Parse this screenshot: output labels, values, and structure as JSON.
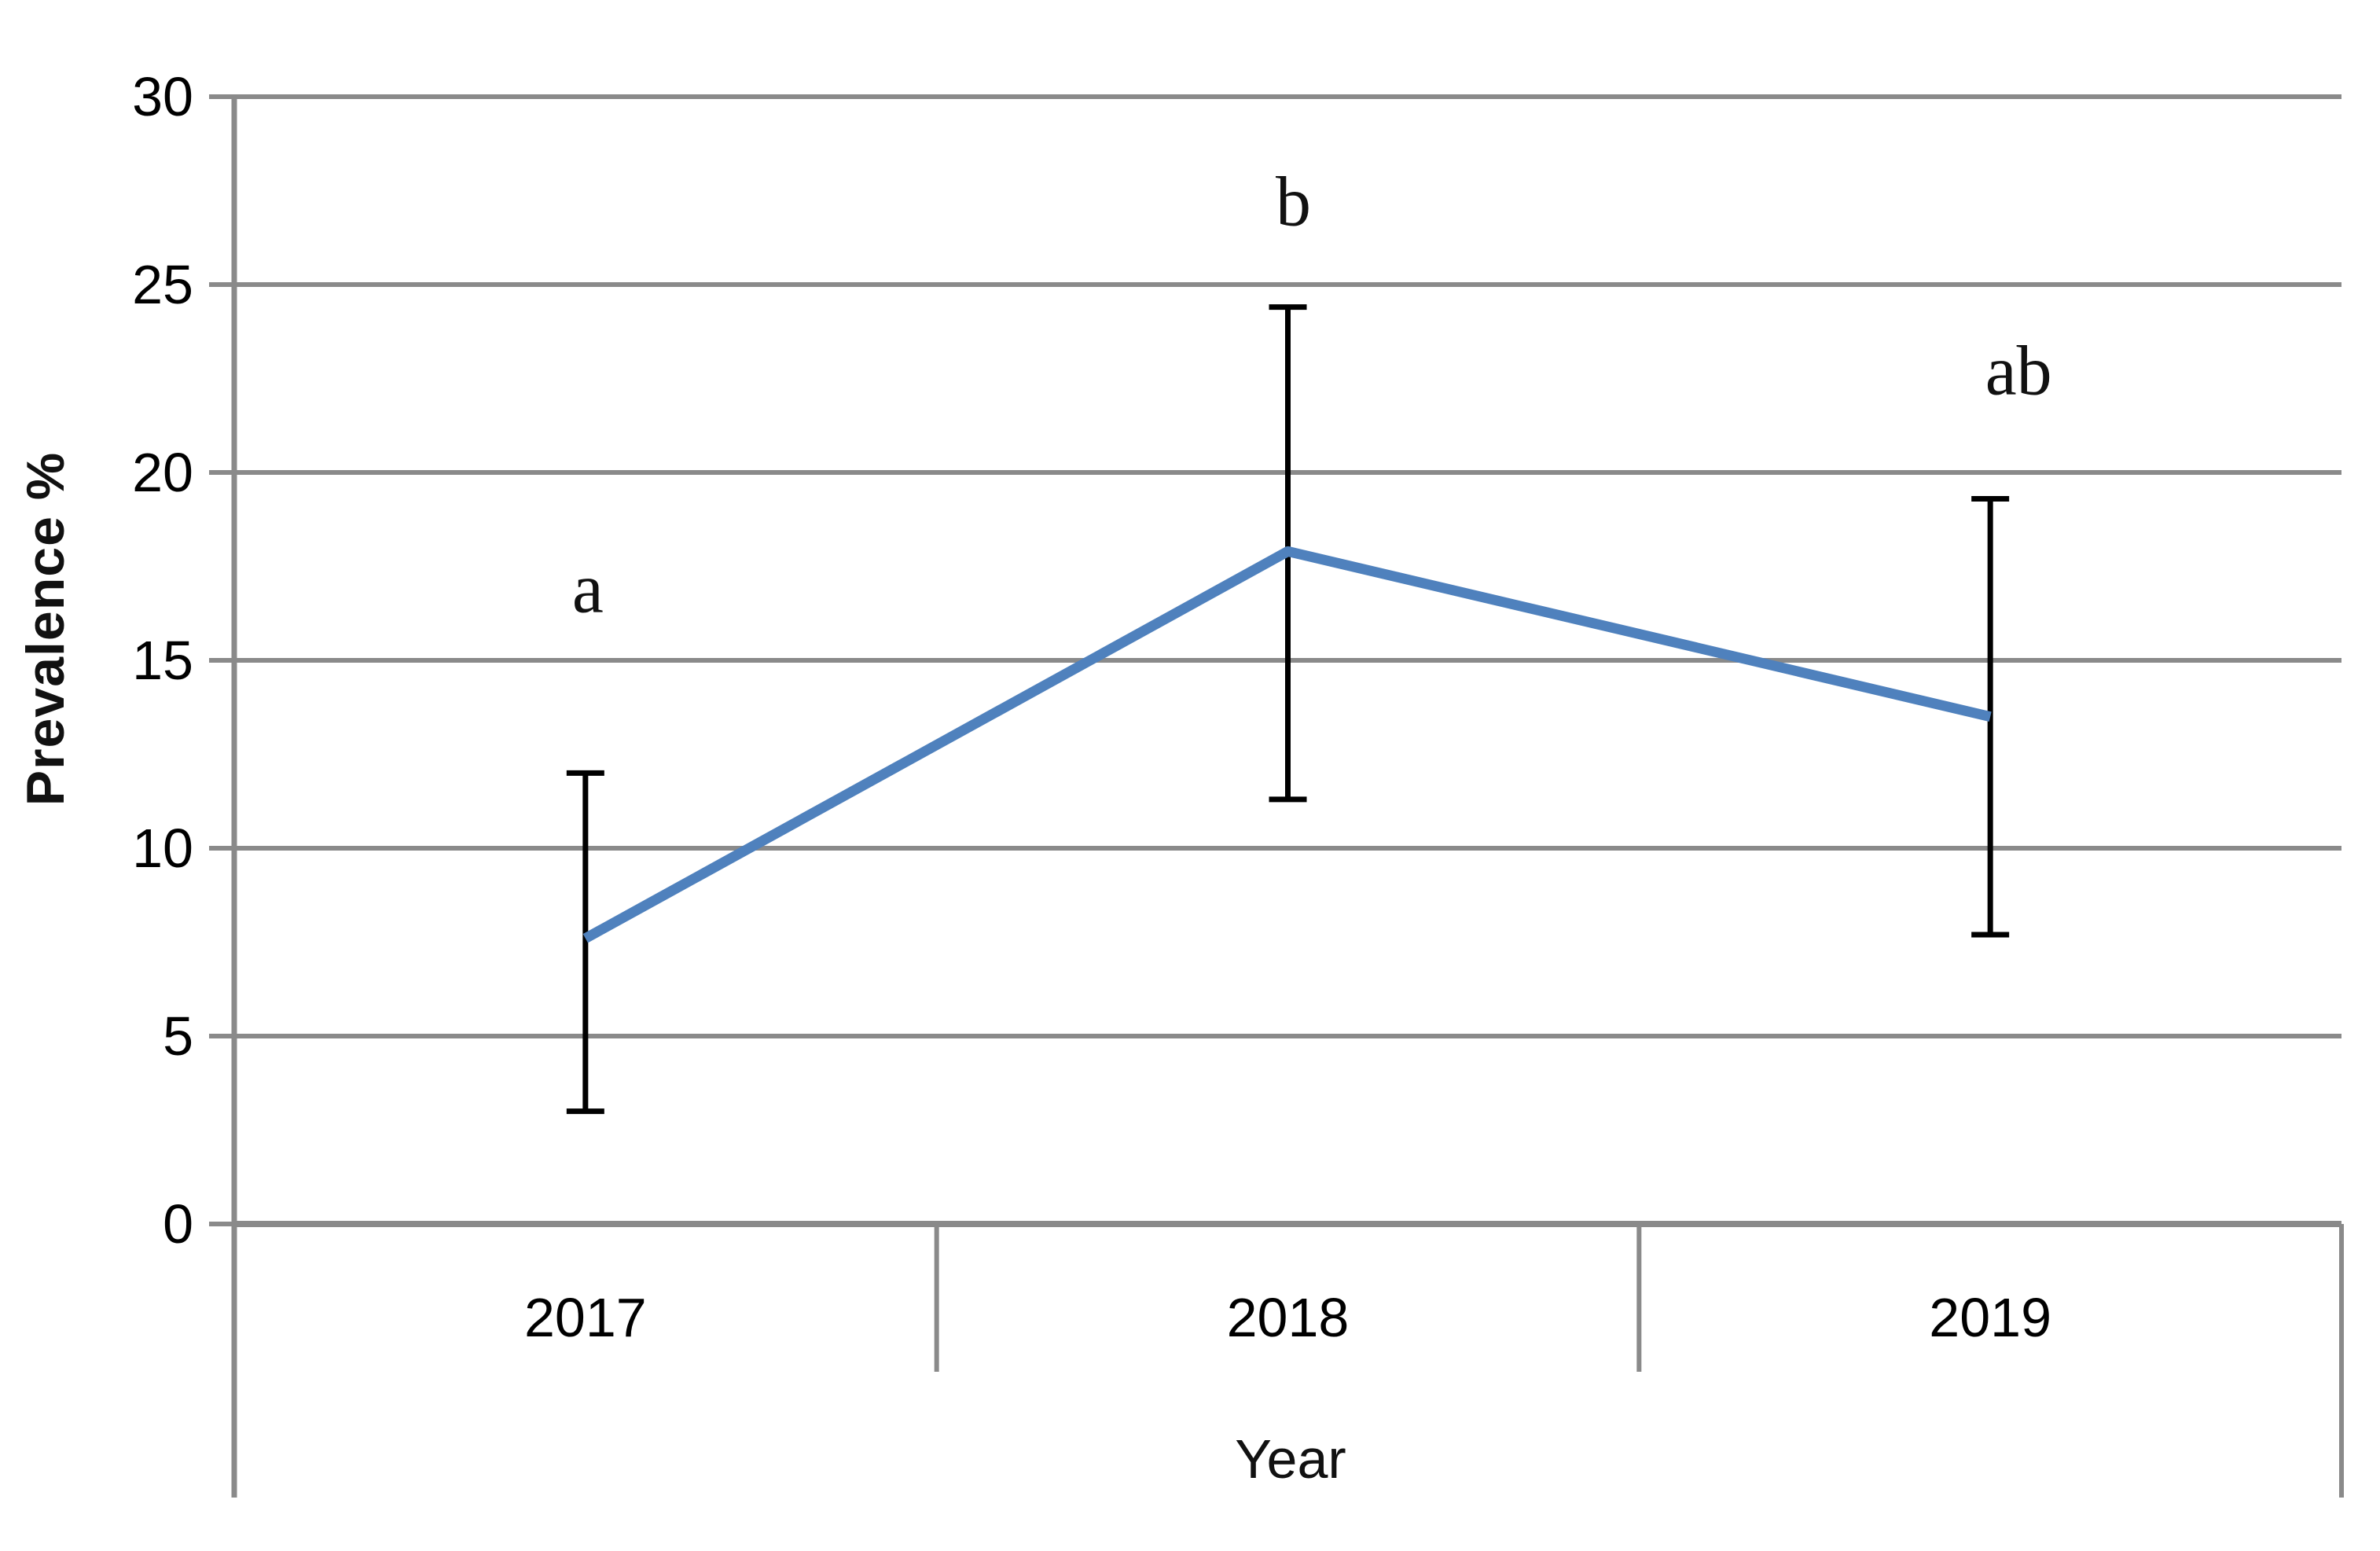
{
  "chart_data": {
    "type": "line",
    "title": "",
    "xlabel": "Year",
    "ylabel": "Prevalence %",
    "categories": [
      "2017",
      "2018",
      "2019"
    ],
    "series": [
      {
        "name": "Prevalence",
        "values": [
          7.6,
          17.9,
          13.5
        ],
        "error_low": [
          3.0,
          11.3,
          7.7
        ],
        "error_high": [
          12.0,
          24.4,
          19.3
        ],
        "color": "#4f81bd"
      }
    ],
    "annotations": [
      {
        "text": "a",
        "category": "2017",
        "category_index": 0,
        "y": 16.9
      },
      {
        "text": "b",
        "category": "2018",
        "category_index": 1,
        "y": 27.2
      },
      {
        "text": "ab",
        "category": "2019",
        "category_index": 2,
        "y": 22.7
      }
    ],
    "ylim": [
      0,
      30
    ],
    "yticks": [
      0,
      5,
      10,
      15,
      20,
      25,
      30
    ],
    "grid": true,
    "legend": "none",
    "colors": {
      "line": "#4f81bd",
      "grid": "#8a8a8a",
      "axis": "#8a8a8a",
      "error_bar": "#000000",
      "text": "#000000"
    }
  }
}
